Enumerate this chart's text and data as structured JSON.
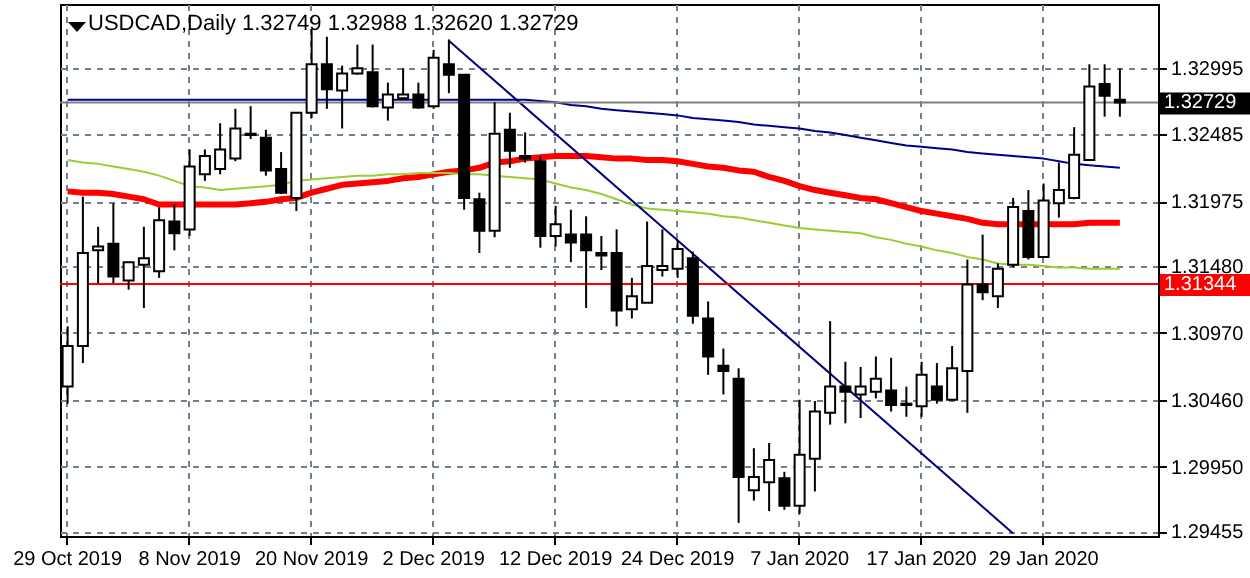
{
  "chart_data": {
    "type": "candlestick",
    "title": "USDCAD,Daily 1.32749 1.32988 1.32620 1.32729",
    "categories": [
      "29 Oct 2019",
      null,
      null,
      null,
      null,
      null,
      null,
      null,
      "8 Nov 2019",
      null,
      null,
      null,
      null,
      null,
      null,
      null,
      "20 Nov 2019",
      null,
      null,
      null,
      null,
      null,
      null,
      null,
      "2 Dec 2019",
      null,
      null,
      null,
      null,
      null,
      null,
      null,
      "12 Dec 2019",
      null,
      null,
      null,
      null,
      null,
      null,
      null,
      "24 Dec 2019",
      null,
      null,
      null,
      null,
      null,
      null,
      null,
      "7 Jan 2020",
      null,
      null,
      null,
      null,
      null,
      null,
      null,
      "17 Jan 2020",
      null,
      null,
      null,
      null,
      null,
      null,
      null,
      "29 Jan 2020",
      null,
      null,
      null,
      null,
      null
    ],
    "ohlc": [
      [
        1.3056,
        1.3102,
        1.3043,
        1.3087
      ],
      [
        1.3087,
        1.3201,
        1.3074,
        1.3158
      ],
      [
        1.316,
        1.3178,
        1.3135,
        1.3163
      ],
      [
        1.3165,
        1.3196,
        1.3135,
        1.314
      ],
      [
        1.3137,
        1.3151,
        1.313,
        1.3151
      ],
      [
        1.3149,
        1.3178,
        1.3116,
        1.3154
      ],
      [
        1.3144,
        1.3193,
        1.3139,
        1.3183
      ],
      [
        1.3182,
        1.3195,
        1.316,
        1.3173
      ],
      [
        1.3176,
        1.3237,
        1.3171,
        1.3224
      ],
      [
        1.3218,
        1.3237,
        1.3213,
        1.3232
      ],
      [
        1.3222,
        1.3257,
        1.3218,
        1.3237
      ],
      [
        1.323,
        1.3268,
        1.3228,
        1.3253
      ],
      [
        1.3248,
        1.327,
        1.3245,
        1.3249
      ],
      [
        1.3246,
        1.3252,
        1.3217,
        1.3221
      ],
      [
        1.3222,
        1.3235,
        1.3203,
        1.3204
      ],
      [
        1.32,
        1.3265,
        1.319,
        1.3265
      ],
      [
        1.3265,
        1.3329,
        1.3261,
        1.3302
      ],
      [
        1.3302,
        1.3323,
        1.3268,
        1.3283
      ],
      [
        1.3282,
        1.3301,
        1.3253,
        1.3295
      ],
      [
        1.3295,
        1.3317,
        1.3294,
        1.3299
      ],
      [
        1.3296,
        1.3317,
        1.3269,
        1.327
      ],
      [
        1.3269,
        1.3288,
        1.3259,
        1.3279
      ],
      [
        1.3276,
        1.3299,
        1.3275,
        1.3279
      ],
      [
        1.3279,
        1.3288,
        1.3268,
        1.3269
      ],
      [
        1.327,
        1.3313,
        1.3268,
        1.3307
      ],
      [
        1.3302,
        1.3321,
        1.328,
        1.3294
      ],
      [
        1.3294,
        1.3294,
        1.3191,
        1.32
      ],
      [
        1.3199,
        1.3204,
        1.3158,
        1.3175
      ],
      [
        1.3175,
        1.3273,
        1.317,
        1.3249
      ],
      [
        1.3252,
        1.3265,
        1.3223,
        1.3236
      ],
      [
        1.3232,
        1.325,
        1.3227,
        1.323
      ],
      [
        1.3228,
        1.3232,
        1.3162,
        1.3171
      ],
      [
        1.3171,
        1.3194,
        1.3163,
        1.318
      ],
      [
        1.3172,
        1.3191,
        1.3151,
        1.3166
      ],
      [
        1.3172,
        1.3186,
        1.3116,
        1.316
      ],
      [
        1.3158,
        1.3171,
        1.3145,
        1.3156
      ],
      [
        1.3158,
        1.3176,
        1.3102,
        1.3114
      ],
      [
        1.3115,
        1.3139,
        1.3108,
        1.3125
      ],
      [
        1.312,
        1.3182,
        1.312,
        1.3148
      ],
      [
        1.3145,
        1.3176,
        1.314,
        1.3148
      ],
      [
        1.3146,
        1.3168,
        1.3139,
        1.3161
      ],
      [
        1.3154,
        1.3159,
        1.3104,
        1.311
      ],
      [
        1.3108,
        1.3121,
        1.3065,
        1.3079
      ],
      [
        1.3072,
        1.3085,
        1.305,
        1.3068
      ],
      [
        1.3062,
        1.307,
        1.2952,
        1.2987
      ],
      [
        1.2977,
        1.3009,
        1.2969,
        1.2987
      ],
      [
        1.2983,
        1.3013,
        1.2961,
        1.3
      ],
      [
        1.2986,
        1.2991,
        1.2962,
        1.2965
      ],
      [
        1.2965,
        1.3046,
        1.2959,
        1.3004
      ],
      [
        1.3001,
        1.3045,
        1.2976,
        1.3037
      ],
      [
        1.3036,
        1.3106,
        1.3027,
        1.3056
      ],
      [
        1.3056,
        1.3075,
        1.3028,
        1.3052
      ],
      [
        1.305,
        1.3071,
        1.3032,
        1.3056
      ],
      [
        1.3052,
        1.3079,
        1.3047,
        1.3062
      ],
      [
        1.3053,
        1.3078,
        1.3037,
        1.3042
      ],
      [
        1.3042,
        1.3056,
        1.3033,
        1.3043
      ],
      [
        1.3041,
        1.3075,
        1.3033,
        1.3065
      ],
      [
        1.3056,
        1.3074,
        1.3043,
        1.3046
      ],
      [
        1.3046,
        1.3087,
        1.3046,
        1.307
      ],
      [
        1.3068,
        1.3153,
        1.3036,
        1.3134
      ],
      [
        1.3134,
        1.3172,
        1.3122,
        1.3128
      ],
      [
        1.3125,
        1.315,
        1.3116,
        1.3146
      ],
      [
        1.3149,
        1.32,
        1.3147,
        1.3193
      ],
      [
        1.319,
        1.3206,
        1.3153,
        1.3155
      ],
      [
        1.3155,
        1.3211,
        1.3155,
        1.3198
      ],
      [
        1.3196,
        1.3227,
        1.3185,
        1.3206
      ],
      [
        1.32,
        1.3254,
        1.3199,
        1.3233
      ],
      [
        1.3229,
        1.3302,
        1.3229,
        1.3285
      ],
      [
        1.3287,
        1.3302,
        1.3262,
        1.3278
      ],
      [
        1.32749,
        1.32988,
        1.3262,
        1.32729
      ]
    ],
    "series": [
      {
        "type": "line",
        "color": "#00008b",
        "values": [
          1.3275,
          1.3275,
          1.3275,
          1.3275,
          1.3275,
          1.3275,
          1.3275,
          1.3275,
          1.3275,
          1.3275,
          1.3275,
          1.3275,
          1.3275,
          1.3275,
          1.3275,
          1.3275,
          1.3275,
          1.3275,
          1.3275,
          1.3275,
          1.3275,
          1.3275,
          1.3275,
          1.3275,
          1.3275,
          1.3275,
          1.3275,
          1.3275,
          1.3275,
          1.3275,
          1.3275,
          1.3274,
          1.3273,
          1.3271,
          1.327,
          1.3268,
          1.3267,
          1.3266,
          1.3265,
          1.3264,
          1.3263,
          1.3261,
          1.326,
          1.3259,
          1.3258,
          1.3256,
          1.3255,
          1.3254,
          1.3253,
          1.3251,
          1.325,
          1.3248,
          1.3246,
          1.3244,
          1.3242,
          1.324,
          1.3239,
          1.3238,
          1.3237,
          1.3235,
          1.3234,
          1.3233,
          1.3232,
          1.3231,
          1.323,
          1.3228,
          1.3226,
          1.3225,
          1.3224,
          1.3223
        ]
      },
      {
        "type": "line",
        "color": "#ff0000",
        "values": [
          1.3205,
          1.3204,
          1.3204,
          1.3203,
          1.3201,
          1.3199,
          1.3195,
          1.3195,
          1.3195,
          1.3195,
          1.3195,
          1.3195,
          1.3196,
          1.3197,
          1.3199,
          1.32,
          1.3204,
          1.3207,
          1.321,
          1.3211,
          1.3212,
          1.3213,
          1.3215,
          1.3216,
          1.3218,
          1.322,
          1.3221,
          1.3223,
          1.3227,
          1.3228,
          1.323,
          1.3231,
          1.3232,
          1.3232,
          1.3232,
          1.3231,
          1.323,
          1.323,
          1.3229,
          1.3229,
          1.3228,
          1.3226,
          1.3224,
          1.3223,
          1.3221,
          1.322,
          1.3216,
          1.3213,
          1.3209,
          1.3206,
          1.3204,
          1.3202,
          1.32,
          1.3199,
          1.3196,
          1.3193,
          1.319,
          1.3188,
          1.3186,
          1.3184,
          1.3181,
          1.318,
          1.318,
          1.318,
          1.318,
          1.318,
          1.318,
          1.3181,
          1.3181,
          1.3181
        ]
      },
      {
        "type": "line",
        "color": "#9acd32",
        "values": [
          1.3229,
          1.3227,
          1.3226,
          1.3224,
          1.3222,
          1.322,
          1.3217,
          1.3213,
          1.3209,
          1.3208,
          1.3206,
          1.3207,
          1.3208,
          1.3209,
          1.321,
          1.3213,
          1.3214,
          1.3215,
          1.3216,
          1.3217,
          1.3217,
          1.3218,
          1.3218,
          1.3219,
          1.3219,
          1.3219,
          1.3218,
          1.3218,
          1.3217,
          1.3216,
          1.3215,
          1.3214,
          1.3211,
          1.3208,
          1.3206,
          1.3203,
          1.3199,
          1.3195,
          1.3192,
          1.3191,
          1.319,
          1.3189,
          1.3188,
          1.3186,
          1.3185,
          1.3183,
          1.3181,
          1.3179,
          1.3177,
          1.3176,
          1.3175,
          1.3174,
          1.3173,
          1.317,
          1.3168,
          1.3165,
          1.3163,
          1.316,
          1.3158,
          1.3155,
          1.3153,
          1.315,
          1.3149,
          1.3149,
          1.3148,
          1.3147,
          1.3147,
          1.3146,
          1.3146,
          1.3146
        ]
      },
      {
        "type": "line",
        "color": "#000080",
        "values": [
          null,
          null,
          null,
          null,
          null,
          null,
          null,
          null,
          null,
          null,
          null,
          null,
          null,
          null,
          null,
          null,
          null,
          null,
          null,
          null,
          null,
          null,
          null,
          null,
          null,
          1.332,
          null,
          null,
          null,
          null,
          null,
          null,
          null,
          null,
          null,
          null,
          null,
          null,
          null,
          null,
          null,
          null,
          null,
          null,
          null,
          null,
          null,
          null,
          null,
          null,
          null,
          null,
          null,
          null,
          null,
          null,
          null,
          null,
          null,
          null,
          null,
          null,
          1.2944,
          null,
          null,
          null,
          null,
          null,
          null,
          null
        ]
      }
    ],
    "ylim": [
      1.2942,
      1.3348
    ],
    "yticks": [
      1.29455,
      {
        "value": 1.2995,
        "label": "1.29950"
      },
      {
        "value": 1.3046,
        "label": "1.30460"
      },
      {
        "value": 1.3097,
        "label": "1.30970"
      },
      {
        "value": 1.3148,
        "label": "1.31480"
      },
      1.31975,
      1.32485,
      1.32995
    ],
    "ref_lines": [
      {
        "axis": "y",
        "value": 1.32729,
        "label": "1.32729",
        "color": "#808080"
      },
      {
        "axis": "y",
        "value": 1.31344,
        "label": "1.31344",
        "color": "#ff0000"
      }
    ],
    "grid": true
  }
}
